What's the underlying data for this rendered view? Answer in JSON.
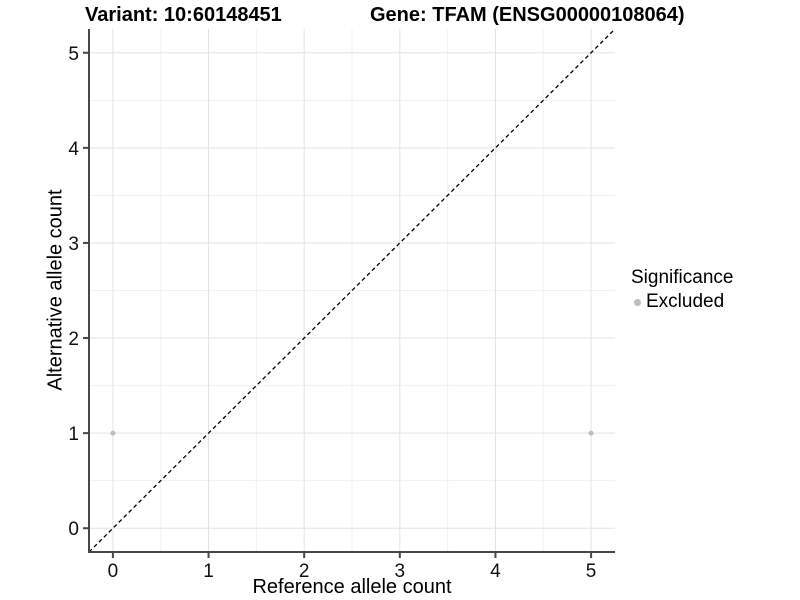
{
  "titles": {
    "variant": "Variant: 10:60148451",
    "gene": "Gene: TFAM (ENSG00000108064)"
  },
  "chart_data": {
    "type": "scatter",
    "title_left": "Variant: 10:60148451",
    "title_right": "Gene: TFAM (ENSG00000108064)",
    "xlabel": "Reference allele count",
    "ylabel": "Alternative allele count",
    "xlim": [
      -0.25,
      5.25
    ],
    "ylim": [
      -0.25,
      5.25
    ],
    "xticks": [
      0,
      1,
      2,
      3,
      4,
      5
    ],
    "yticks": [
      0,
      1,
      2,
      3,
      4,
      5
    ],
    "minor_grid_step": 0.5,
    "grid": true,
    "points": [
      {
        "x": 0,
        "y": 1,
        "series": "Excluded"
      },
      {
        "x": 5,
        "y": 1,
        "series": "Excluded"
      }
    ],
    "reference_line": {
      "type": "identity",
      "from": [
        -0.25,
        -0.25
      ],
      "to": [
        5.25,
        5.25
      ],
      "style": "dashed",
      "color": "#000000"
    },
    "legend": {
      "title": "Significance",
      "position": "right",
      "entries": [
        {
          "label": "Excluded",
          "color": "#bdbdbd",
          "marker": "circle"
        }
      ]
    },
    "colors": {
      "point": "#bdbdbd",
      "grid_major": "#e3e3e3",
      "grid_minor": "#f1f1f1",
      "axis": "#474747",
      "tick_label": "#111111",
      "background": "#ffffff"
    }
  }
}
